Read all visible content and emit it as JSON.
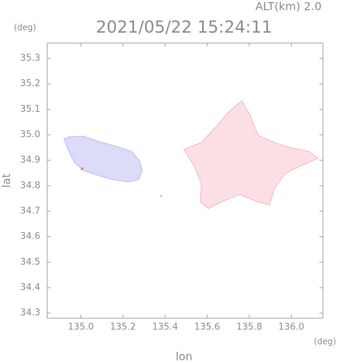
{
  "chart_data": {
    "type": "map",
    "title": "2021/05/22 15:24:11",
    "subtitle": "ALT(km) 2.0",
    "x_label": "lon",
    "y_label": "lat",
    "x_unit": "(deg)",
    "y_unit": "(deg)",
    "xlim": [
      134.84,
      136.15
    ],
    "ylim": [
      34.28,
      35.36
    ],
    "xticks": [
      {
        "value": 135,
        "label": "135.0"
      },
      135.2,
      135.4,
      135.6,
      135.8,
      {
        "value": 136,
        "label": "136.0"
      }
    ],
    "yticks": [
      34.3,
      34.4,
      34.5,
      34.6,
      34.7,
      34.8,
      34.9,
      {
        "value": 35,
        "label": "35.0"
      },
      35.1,
      35.2,
      35.3
    ]
  }
}
